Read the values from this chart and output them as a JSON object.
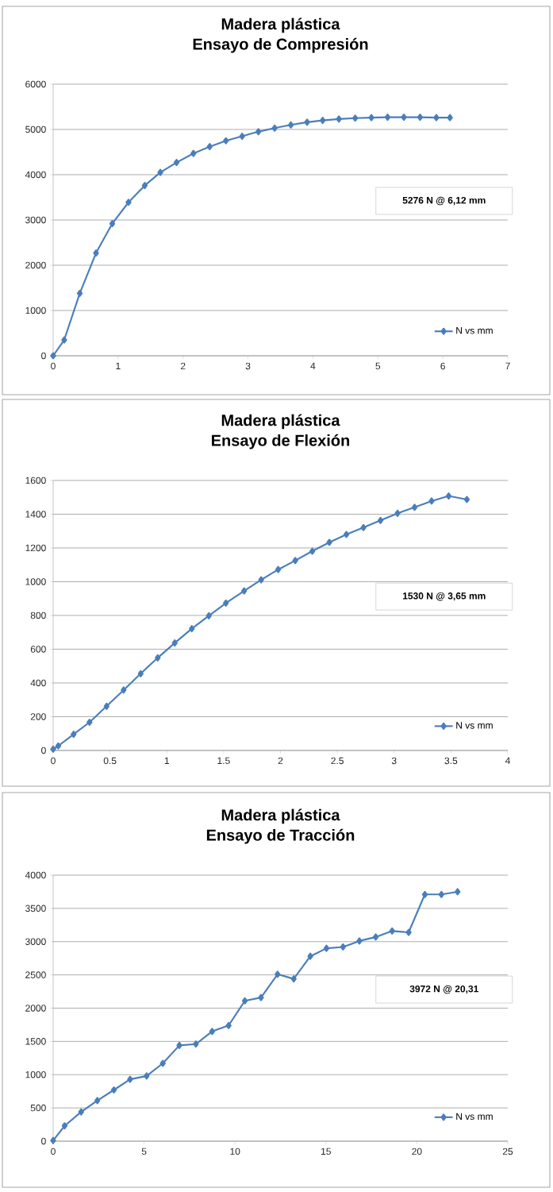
{
  "chart_data": [
    {
      "type": "line",
      "title": "Madera plástica",
      "subtitle": "Ensayo de Compresión",
      "x": [
        0,
        0.17,
        0.41,
        0.66,
        0.91,
        1.16,
        1.41,
        1.65,
        1.9,
        2.16,
        2.41,
        2.66,
        2.91,
        3.16,
        3.41,
        3.66,
        3.91,
        4.15,
        4.4,
        4.65,
        4.9,
        5.15,
        5.4,
        5.65,
        5.9,
        6.11
      ],
      "series": [
        {
          "name": "N vs mm",
          "color": "#4a7ebb",
          "values": [
            0,
            350,
            1380,
            2270,
            2920,
            3390,
            3760,
            4050,
            4270,
            4470,
            4620,
            4750,
            4850,
            4950,
            5030,
            5100,
            5160,
            5200,
            5230,
            5250,
            5260,
            5270,
            5270,
            5270,
            5260,
            5260
          ]
        }
      ],
      "xlim": [
        0,
        7
      ],
      "xticks": [
        0,
        1,
        2,
        3,
        4,
        5,
        6,
        7
      ],
      "ylim": [
        0,
        6000
      ],
      "yticks": [
        0,
        1000,
        2000,
        3000,
        4000,
        5000,
        6000
      ],
      "grid": "y",
      "legend": "bottom right",
      "marker": "diamond",
      "annotations": [
        "5276 N @ 6,12 mm"
      ]
    },
    {
      "type": "line",
      "title": "Madera plástica",
      "subtitle": "Ensayo de Flexión",
      "x": [
        0,
        0.045,
        0.18,
        0.32,
        0.47,
        0.62,
        0.77,
        0.92,
        1.07,
        1.22,
        1.37,
        1.52,
        1.68,
        1.83,
        1.98,
        2.13,
        2.28,
        2.43,
        2.58,
        2.73,
        2.88,
        3.03,
        3.18,
        3.33,
        3.48,
        3.64
      ],
      "series": [
        {
          "name": "N vs mm",
          "color": "#4a7ebb",
          "values": [
            8,
            27,
            96,
            167,
            262,
            358,
            455,
            549,
            637,
            722,
            798,
            873,
            945,
            1011,
            1072,
            1125,
            1181,
            1233,
            1280,
            1321,
            1363,
            1405,
            1441,
            1478,
            1508,
            1487
          ]
        }
      ],
      "xlim": [
        0,
        4
      ],
      "xticks": [
        0,
        0.5,
        1,
        1.5,
        2,
        2.5,
        3,
        3.5,
        4
      ],
      "ylim": [
        0,
        1600
      ],
      "yticks": [
        0,
        200,
        400,
        600,
        800,
        1000,
        1200,
        1400,
        1600
      ],
      "grid": "y",
      "legend": "bottom right",
      "marker": "diamond",
      "annotations": [
        "1530 N @ 3,65 mm"
      ]
    },
    {
      "type": "line",
      "title": "Madera plástica",
      "subtitle": "Ensayo de Tracción",
      "x": [
        0,
        0.63,
        1.54,
        2.43,
        3.34,
        4.23,
        5.14,
        6.03,
        6.94,
        7.85,
        8.74,
        9.65,
        10.54,
        11.43,
        12.34,
        13.23,
        14.14,
        15.03,
        15.94,
        16.84,
        17.74,
        18.64,
        19.55,
        20.44,
        21.35,
        22.24
      ],
      "series": [
        {
          "name": "N vs mm",
          "color": "#4a7ebb",
          "values": [
            10,
            230,
            440,
            610,
            770,
            930,
            980,
            1170,
            1440,
            1460,
            1650,
            1740,
            2110,
            2160,
            2510,
            2440,
            2780,
            2900,
            2920,
            3010,
            3070,
            3160,
            3140,
            3710,
            3710,
            3750
          ]
        }
      ],
      "xlim": [
        0,
        25
      ],
      "xticks": [
        0,
        5,
        10,
        15,
        20,
        25
      ],
      "ylim": [
        0,
        4000
      ],
      "yticks": [
        0,
        500,
        1000,
        1500,
        2000,
        2500,
        3000,
        3500,
        4000
      ],
      "grid": "y",
      "legend": "bottom right",
      "marker": "diamond",
      "annotations": [
        "3972 N @ 20,31"
      ]
    }
  ]
}
